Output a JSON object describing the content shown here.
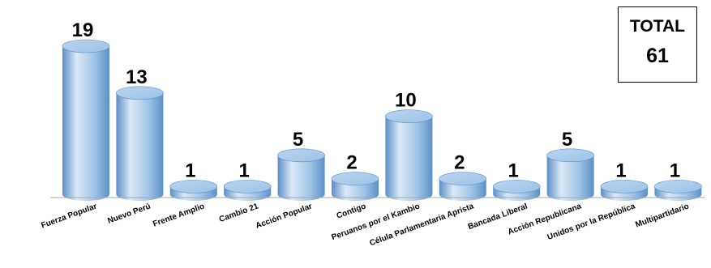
{
  "total": {
    "label": "TOTAL",
    "value": "61"
  },
  "colors": {
    "cylinder_body": "#9dc3e6",
    "cylinder_highlight": "#dbe9f7",
    "cylinder_shadow": "#5b8fc7",
    "cylinder_top": "#b9d4ef",
    "axis": "#a6a6a6",
    "text": "#000000"
  },
  "chart_data": {
    "type": "bar",
    "style": "3d-cylinder",
    "categories": [
      "Fuerza  Popular",
      "Nuevo Perú",
      "Frente Amplio",
      "Cambio 21",
      "Acción Popular",
      "Contigo",
      "Peruanos por el Kambio",
      "Célula Parlamentaria Aprista",
      "Bancada Liberal",
      "Acción Republicana",
      "Unidos por la República",
      "Multipartidario"
    ],
    "values": [
      19,
      13,
      1,
      1,
      5,
      2,
      10,
      2,
      1,
      5,
      1,
      1
    ],
    "data_labels": [
      "19",
      "13",
      "1",
      "1",
      "5",
      "2",
      "10",
      "2",
      "1",
      "5",
      "1",
      "1"
    ],
    "title": "",
    "xlabel": "",
    "ylabel": "",
    "ylim": [
      0,
      19
    ],
    "grid": false,
    "legend": "none",
    "tick_label_rotation": "diagonal"
  }
}
